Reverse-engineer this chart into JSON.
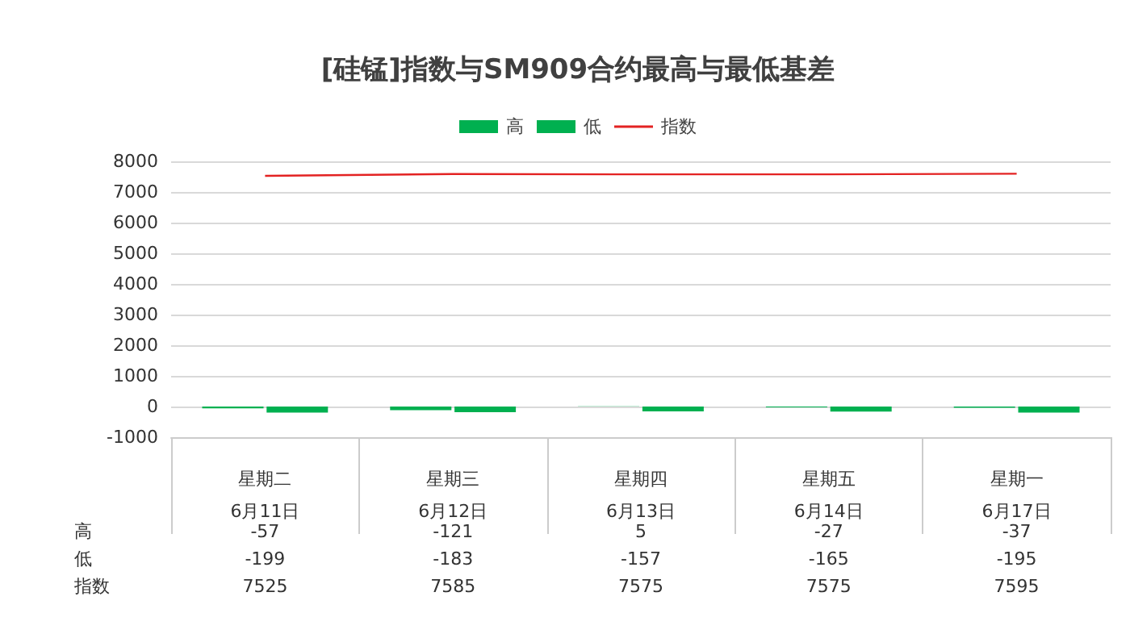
{
  "chart_data": {
    "type": "bar",
    "title": "[硅锰]指数与SM909合约最高与最低基差",
    "categories": [
      "星期二\n6月11日",
      "星期三\n6月12日",
      "星期四\n6月13日",
      "星期五\n6月14日",
      "星期一\n6月17日"
    ],
    "series": [
      {
        "name": "高",
        "color": "#00b050",
        "values": [
          -57,
          -121,
          5,
          -27,
          -37
        ]
      },
      {
        "name": "低",
        "color": "#00b050",
        "values": [
          -199,
          -183,
          -157,
          -165,
          -195
        ]
      },
      {
        "name": "指数",
        "type": "line",
        "color": "#e32222",
        "values": [
          7525,
          7585,
          7575,
          7575,
          7595
        ]
      }
    ],
    "ylim": [
      -1000,
      8000
    ],
    "yticks": [
      -1000,
      0,
      1000,
      2000,
      3000,
      4000,
      5000,
      6000,
      7000,
      8000
    ],
    "grid": "y",
    "legend": "top",
    "data_labels": true,
    "marker": "none"
  }
}
